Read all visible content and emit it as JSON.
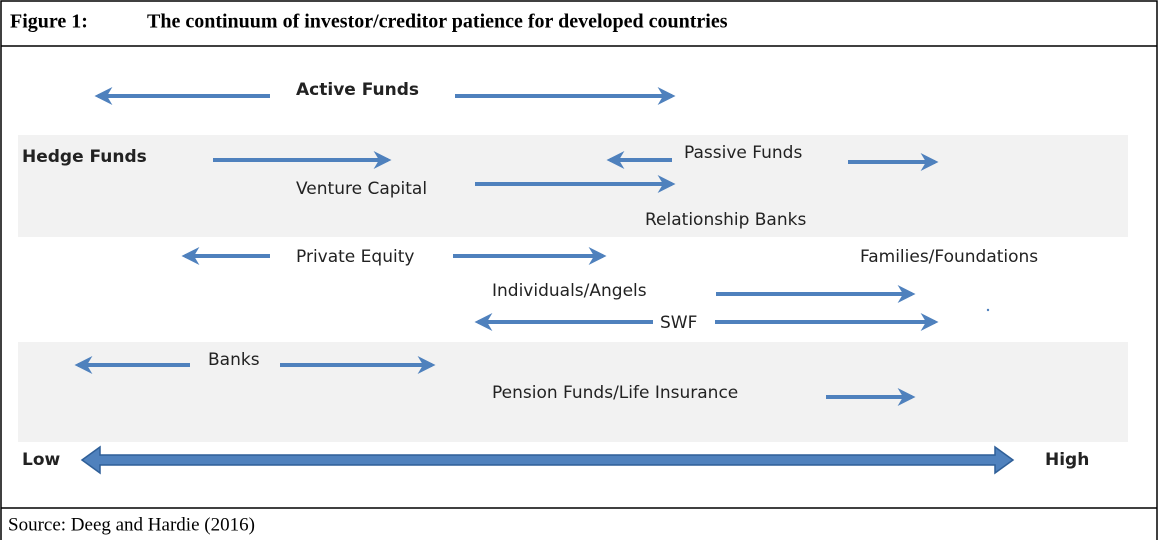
{
  "header": {
    "label": "Figure 1:",
    "title": "The continuum of investor/creditor patience for developed countries"
  },
  "nodes": [
    {
      "label": "Active Funds"
    },
    {
      "label": "Hedge Funds"
    },
    {
      "label": "Passive Funds"
    },
    {
      "label": "Venture Capital"
    },
    {
      "label": "Relationship Banks"
    },
    {
      "label": "Private Equity"
    },
    {
      "label": "Families/Foundations"
    },
    {
      "label": "Individuals/Angels"
    },
    {
      "label": "SWF"
    },
    {
      "label": "Banks"
    },
    {
      "label": "Pension Funds/Life Insurance"
    }
  ],
  "axis": {
    "low": "Low",
    "high": "High"
  },
  "footer": {
    "source": "Source: Deeg and Hardie (2016)"
  }
}
